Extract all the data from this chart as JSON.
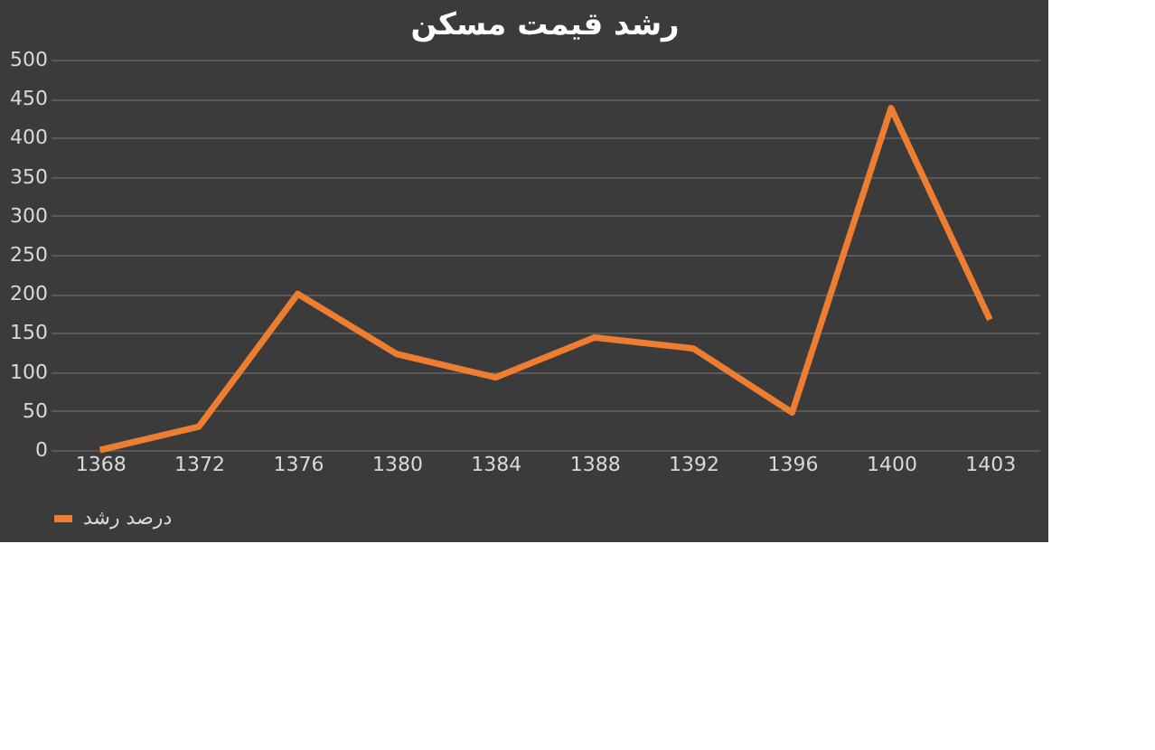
{
  "chart_data": {
    "type": "line",
    "title": "رشد قیمت مسکن",
    "categories": [
      "1368",
      "1372",
      "1376",
      "1380",
      "1384",
      "1388",
      "1392",
      "1396",
      "1400",
      "1403"
    ],
    "series": [
      {
        "name": "درصد رشد",
        "color": "#ed7d31",
        "values": [
          0,
          30,
          200,
          123,
          93,
          144,
          130,
          48,
          438,
          167
        ]
      }
    ],
    "ylim": [
      0,
      500
    ],
    "yticks": [
      0,
      50,
      100,
      150,
      200,
      250,
      300,
      350,
      400,
      450,
      500
    ],
    "grid": "y",
    "legend": "bottom",
    "marker": "none",
    "line_style": "solid"
  }
}
